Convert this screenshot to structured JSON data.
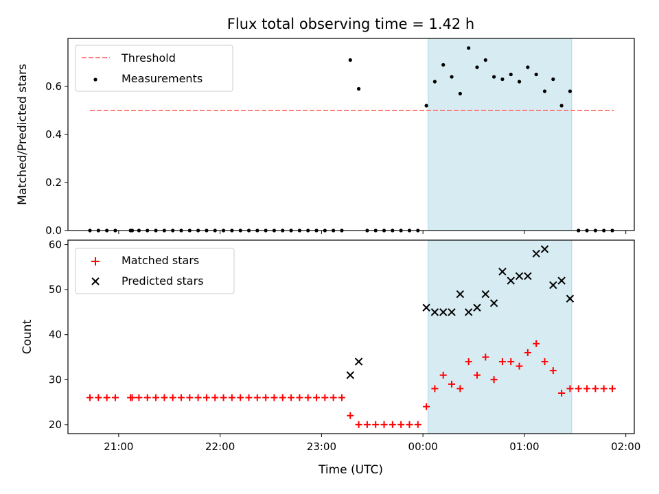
{
  "title": "Flux total observing time = 1.42 h",
  "colors": {
    "threshold": "#ff7f7f",
    "measurements": "#000000",
    "matched": "#ff0000",
    "predicted": "#000000",
    "span": "#add8e6"
  },
  "chart_data": [
    {
      "type": "scatter",
      "ylabel": "Matched/Predicted stars",
      "xlim": [
        "20:30",
        "02:05"
      ],
      "ylim": [
        0,
        0.8
      ],
      "yticks": [
        "0.0",
        "0.2",
        "0.4",
        "0.6"
      ],
      "grid": false,
      "legend": "upper-left",
      "highlight_span": [
        "00:03",
        "01:28"
      ],
      "threshold": {
        "name": "Threshold",
        "value": 0.5,
        "x_start": "20:43",
        "x_end": "01:53"
      },
      "series": [
        {
          "name": "Measurements",
          "points": [
            [
              "20:43",
              0
            ],
            [
              "20:48",
              0
            ],
            [
              "20:53",
              0
            ],
            [
              "20:58",
              0
            ],
            [
              "21:07",
              0
            ],
            [
              "21:08",
              0
            ],
            [
              "21:12",
              0
            ],
            [
              "21:17",
              0
            ],
            [
              "21:22",
              0
            ],
            [
              "21:27",
              0
            ],
            [
              "21:32",
              0
            ],
            [
              "21:37",
              0
            ],
            [
              "21:42",
              0
            ],
            [
              "21:47",
              0
            ],
            [
              "21:52",
              0
            ],
            [
              "21:57",
              0
            ],
            [
              "22:02",
              0
            ],
            [
              "22:07",
              0
            ],
            [
              "22:12",
              0
            ],
            [
              "22:17",
              0
            ],
            [
              "22:22",
              0
            ],
            [
              "22:27",
              0
            ],
            [
              "22:32",
              0
            ],
            [
              "22:37",
              0
            ],
            [
              "22:42",
              0
            ],
            [
              "22:47",
              0
            ],
            [
              "22:52",
              0
            ],
            [
              "22:57",
              0
            ],
            [
              "23:02",
              0
            ],
            [
              "23:07",
              0
            ],
            [
              "23:12",
              0
            ],
            [
              "23:17",
              0.71
            ],
            [
              "23:22",
              0.59
            ],
            [
              "23:27",
              0
            ],
            [
              "23:32",
              0
            ],
            [
              "23:37",
              0
            ],
            [
              "23:42",
              0
            ],
            [
              "23:47",
              0
            ],
            [
              "23:52",
              0
            ],
            [
              "23:57",
              0
            ],
            [
              "00:02",
              0.52
            ],
            [
              "00:07",
              0.62
            ],
            [
              "00:12",
              0.69
            ],
            [
              "00:17",
              0.64
            ],
            [
              "00:22",
              0.57
            ],
            [
              "00:27",
              0.76
            ],
            [
              "00:32",
              0.68
            ],
            [
              "00:37",
              0.71
            ],
            [
              "00:42",
              0.64
            ],
            [
              "00:47",
              0.63
            ],
            [
              "00:52",
              0.65
            ],
            [
              "00:57",
              0.62
            ],
            [
              "01:02",
              0.68
            ],
            [
              "01:07",
              0.65
            ],
            [
              "01:12",
              0.58
            ],
            [
              "01:17",
              0.63
            ],
            [
              "01:22",
              0.52
            ],
            [
              "01:27",
              0.58
            ],
            [
              "01:32",
              0
            ],
            [
              "01:37",
              0
            ],
            [
              "01:42",
              0
            ],
            [
              "01:47",
              0
            ],
            [
              "01:52",
              0
            ]
          ]
        }
      ]
    },
    {
      "type": "scatter",
      "xlabel": "Time (UTC)",
      "ylabel": "Count",
      "xlim": [
        "20:30",
        "02:05"
      ],
      "ylim": [
        18,
        61
      ],
      "xticks": [
        "21:00",
        "22:00",
        "23:00",
        "00:00",
        "01:00",
        "02:00"
      ],
      "yticks": [
        "20",
        "30",
        "40",
        "50",
        "60"
      ],
      "grid": false,
      "legend": "upper-left",
      "highlight_span": [
        "00:03",
        "01:28"
      ],
      "series": [
        {
          "name": "Matched stars",
          "points": [
            [
              "20:43",
              26
            ],
            [
              "20:48",
              26
            ],
            [
              "20:53",
              26
            ],
            [
              "20:58",
              26
            ],
            [
              "21:07",
              26
            ],
            [
              "21:08",
              26
            ],
            [
              "21:12",
              26
            ],
            [
              "21:17",
              26
            ],
            [
              "21:22",
              26
            ],
            [
              "21:27",
              26
            ],
            [
              "21:32",
              26
            ],
            [
              "21:37",
              26
            ],
            [
              "21:42",
              26
            ],
            [
              "21:47",
              26
            ],
            [
              "21:52",
              26
            ],
            [
              "21:57",
              26
            ],
            [
              "22:02",
              26
            ],
            [
              "22:07",
              26
            ],
            [
              "22:12",
              26
            ],
            [
              "22:17",
              26
            ],
            [
              "22:22",
              26
            ],
            [
              "22:27",
              26
            ],
            [
              "22:32",
              26
            ],
            [
              "22:37",
              26
            ],
            [
              "22:42",
              26
            ],
            [
              "22:47",
              26
            ],
            [
              "22:52",
              26
            ],
            [
              "22:57",
              26
            ],
            [
              "23:02",
              26
            ],
            [
              "23:07",
              26
            ],
            [
              "23:12",
              26
            ],
            [
              "23:17",
              22
            ],
            [
              "23:22",
              20
            ],
            [
              "23:27",
              20
            ],
            [
              "23:32",
              20
            ],
            [
              "23:37",
              20
            ],
            [
              "23:42",
              20
            ],
            [
              "23:47",
              20
            ],
            [
              "23:52",
              20
            ],
            [
              "23:57",
              20
            ],
            [
              "00:02",
              24
            ],
            [
              "00:07",
              28
            ],
            [
              "00:12",
              31
            ],
            [
              "00:17",
              29
            ],
            [
              "00:22",
              28
            ],
            [
              "00:27",
              34
            ],
            [
              "00:32",
              31
            ],
            [
              "00:37",
              35
            ],
            [
              "00:42",
              30
            ],
            [
              "00:47",
              34
            ],
            [
              "00:52",
              34
            ],
            [
              "00:57",
              33
            ],
            [
              "01:02",
              36
            ],
            [
              "01:07",
              38
            ],
            [
              "01:12",
              34
            ],
            [
              "01:17",
              32
            ],
            [
              "01:22",
              27
            ],
            [
              "01:27",
              28
            ],
            [
              "01:32",
              28
            ],
            [
              "01:37",
              28
            ],
            [
              "01:42",
              28
            ],
            [
              "01:47",
              28
            ],
            [
              "01:52",
              28
            ]
          ]
        },
        {
          "name": "Predicted stars",
          "points": [
            [
              "23:17",
              31
            ],
            [
              "23:22",
              34
            ],
            [
              "00:02",
              46
            ],
            [
              "00:07",
              45
            ],
            [
              "00:12",
              45
            ],
            [
              "00:17",
              45
            ],
            [
              "00:22",
              49
            ],
            [
              "00:27",
              45
            ],
            [
              "00:32",
              46
            ],
            [
              "00:37",
              49
            ],
            [
              "00:42",
              47
            ],
            [
              "00:47",
              54
            ],
            [
              "00:52",
              52
            ],
            [
              "00:57",
              53
            ],
            [
              "01:02",
              53
            ],
            [
              "01:07",
              58
            ],
            [
              "01:12",
              59
            ],
            [
              "01:17",
              51
            ],
            [
              "01:22",
              52
            ],
            [
              "01:27",
              48
            ]
          ]
        }
      ]
    }
  ]
}
